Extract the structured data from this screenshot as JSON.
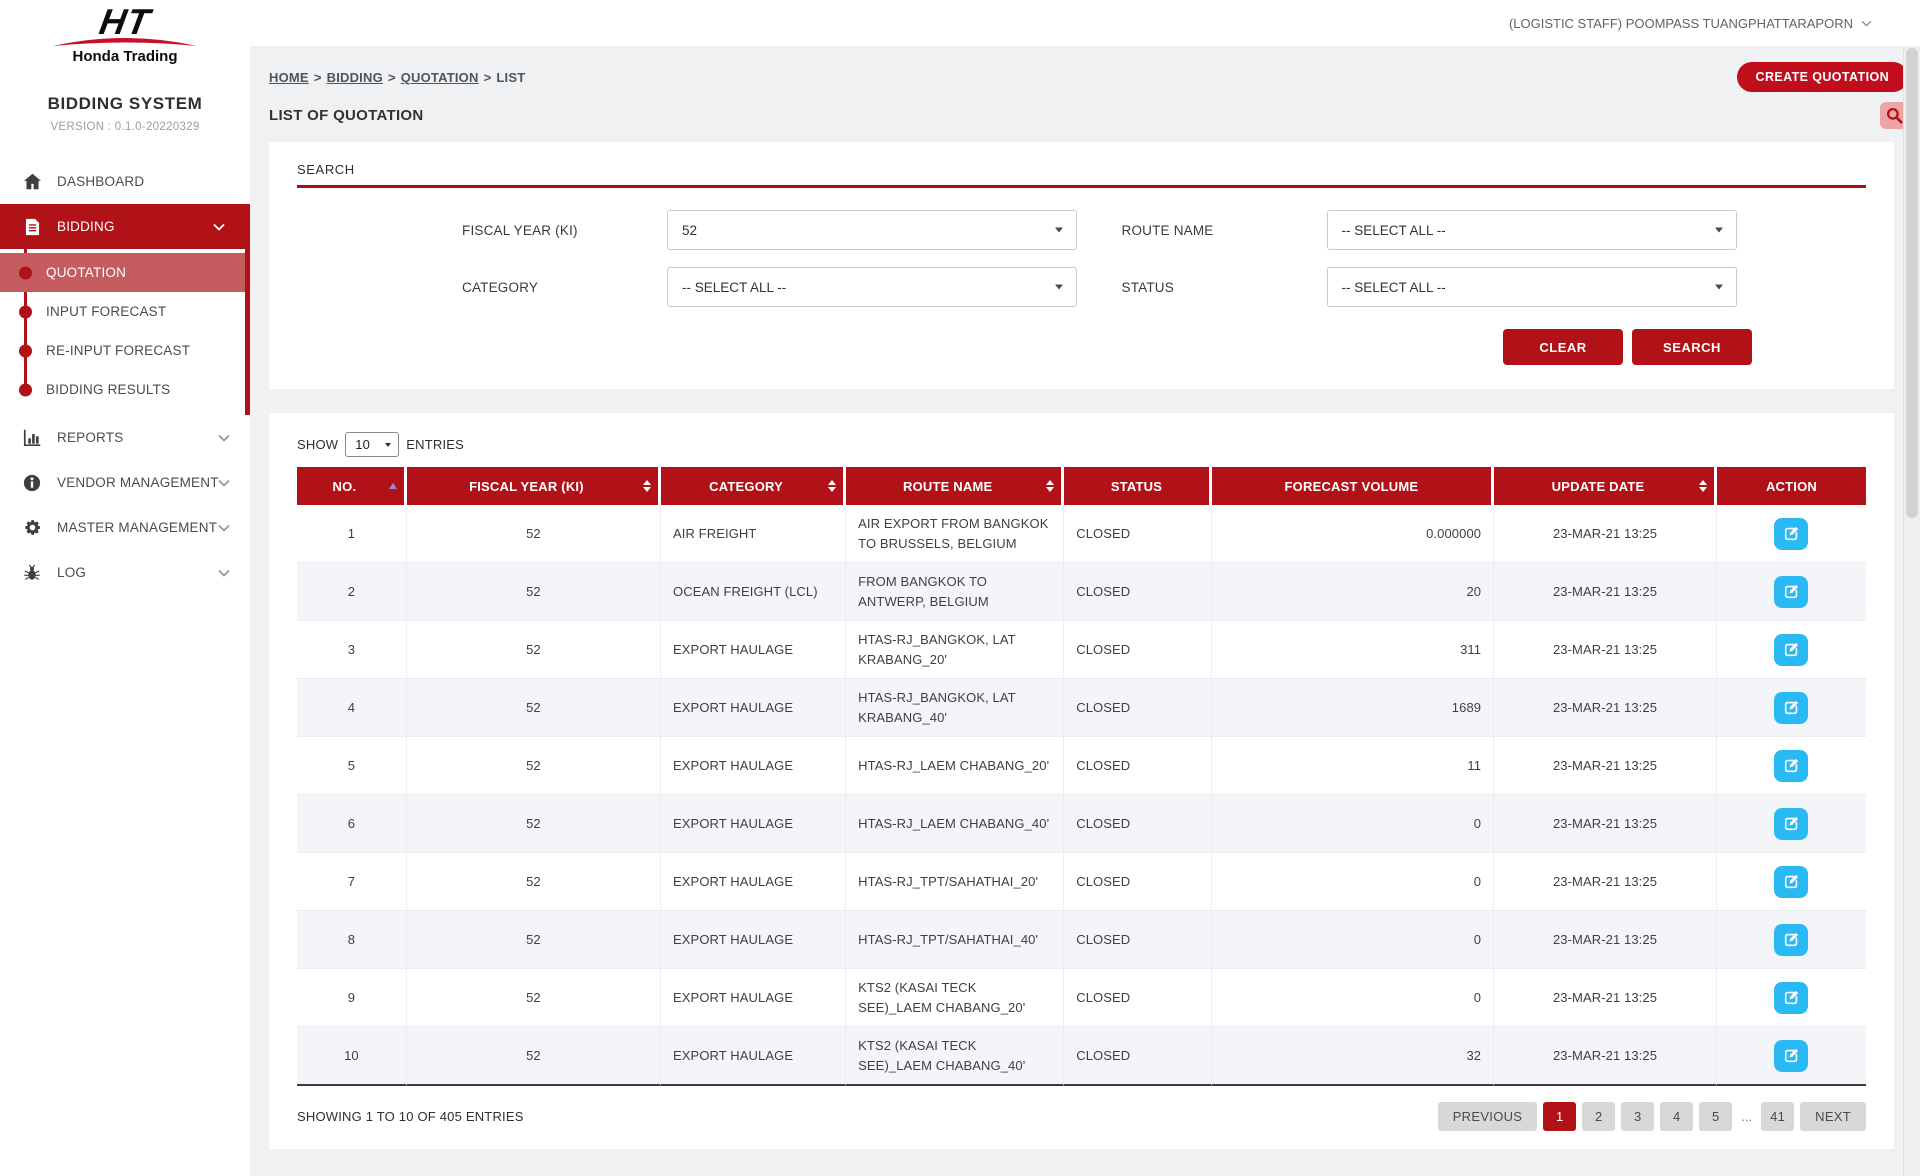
{
  "header": {
    "user_label": "(LOGISTIC STAFF) POOMPASS TUANGPHATTARAPORN"
  },
  "sidebar": {
    "logo_monogram": "HT",
    "logo_company": "Honda Trading",
    "app_title": "BIDDING SYSTEM",
    "version": "VERSION : 0.1.0-20220329",
    "items": [
      {
        "label": "DASHBOARD",
        "icon": "home"
      },
      {
        "label": "BIDDING",
        "icon": "document",
        "expanded": true,
        "children": [
          {
            "label": "QUOTATION",
            "active": true
          },
          {
            "label": "INPUT FORECAST"
          },
          {
            "label": "RE-INPUT FORECAST"
          },
          {
            "label": "BIDDING RESULTS"
          }
        ]
      },
      {
        "label": "REPORTS",
        "icon": "bar-chart"
      },
      {
        "label": "VENDOR MANAGEMENT",
        "icon": "info"
      },
      {
        "label": "MASTER MANAGEMENT",
        "icon": "gear"
      },
      {
        "label": "LOG",
        "icon": "bug"
      }
    ]
  },
  "breadcrumb": {
    "items": [
      "HOME",
      "BIDDING",
      "QUOTATION"
    ],
    "current": "LIST",
    "separator": ">"
  },
  "page": {
    "title": "LIST OF QUOTATION",
    "create_button": "CREATE QUOTATION"
  },
  "search_panel": {
    "title": "SEARCH",
    "fields": [
      {
        "label": "FISCAL YEAR (KI)",
        "value": "52"
      },
      {
        "label": "ROUTE NAME",
        "value": "-- SELECT ALL --"
      },
      {
        "label": "CATEGORY",
        "value": "-- SELECT ALL --"
      },
      {
        "label": "STATUS",
        "value": "-- SELECT ALL --"
      }
    ],
    "clear_button": "CLEAR",
    "search_button": "SEARCH"
  },
  "table": {
    "show_label": "SHOW",
    "entries_label": "ENTRIES",
    "page_size": "10",
    "columns": [
      {
        "label": "NO.",
        "sort": "asc"
      },
      {
        "label": "FISCAL YEAR (KI)",
        "sort": "both"
      },
      {
        "label": "CATEGORY",
        "sort": "both"
      },
      {
        "label": "ROUTE NAME",
        "sort": "both"
      },
      {
        "label": "STATUS",
        "sort": "none"
      },
      {
        "label": "FORECAST VOLUME",
        "sort": "none"
      },
      {
        "label": "UPDATE DATE",
        "sort": "both"
      },
      {
        "label": "ACTION",
        "sort": "none"
      }
    ],
    "rows": [
      {
        "no": "1",
        "fiscal_year": "52",
        "category": "AIR FREIGHT",
        "route_name": "AIR EXPORT FROM BANGKOK TO BRUSSELS, BELGIUM",
        "status": "CLOSED",
        "forecast_volume": "0.000000",
        "update_date": "23-MAR-21 13:25"
      },
      {
        "no": "2",
        "fiscal_year": "52",
        "category": "OCEAN FREIGHT (LCL)",
        "route_name": "FROM BANGKOK TO ANTWERP, BELGIUM",
        "status": "CLOSED",
        "forecast_volume": "20",
        "update_date": "23-MAR-21 13:25"
      },
      {
        "no": "3",
        "fiscal_year": "52",
        "category": "EXPORT HAULAGE",
        "route_name": "HTAS-RJ_BANGKOK, LAT KRABANG_20'",
        "status": "CLOSED",
        "forecast_volume": "311",
        "update_date": "23-MAR-21 13:25"
      },
      {
        "no": "4",
        "fiscal_year": "52",
        "category": "EXPORT HAULAGE",
        "route_name": "HTAS-RJ_BANGKOK, LAT KRABANG_40'",
        "status": "CLOSED",
        "forecast_volume": "1689",
        "update_date": "23-MAR-21 13:25"
      },
      {
        "no": "5",
        "fiscal_year": "52",
        "category": "EXPORT HAULAGE",
        "route_name": "HTAS-RJ_LAEM CHABANG_20'",
        "status": "CLOSED",
        "forecast_volume": "11",
        "update_date": "23-MAR-21 13:25"
      },
      {
        "no": "6",
        "fiscal_year": "52",
        "category": "EXPORT HAULAGE",
        "route_name": "HTAS-RJ_LAEM CHABANG_40'",
        "status": "CLOSED",
        "forecast_volume": "0",
        "update_date": "23-MAR-21 13:25"
      },
      {
        "no": "7",
        "fiscal_year": "52",
        "category": "EXPORT HAULAGE",
        "route_name": "HTAS-RJ_TPT/SAHATHAI_20'",
        "status": "CLOSED",
        "forecast_volume": "0",
        "update_date": "23-MAR-21 13:25"
      },
      {
        "no": "8",
        "fiscal_year": "52",
        "category": "EXPORT HAULAGE",
        "route_name": "HTAS-RJ_TPT/SAHATHAI_40'",
        "status": "CLOSED",
        "forecast_volume": "0",
        "update_date": "23-MAR-21 13:25"
      },
      {
        "no": "9",
        "fiscal_year": "52",
        "category": "EXPORT HAULAGE",
        "route_name": "KTS2 (KASAI TECK SEE)_LAEM CHABANG_20'",
        "status": "CLOSED",
        "forecast_volume": "0",
        "update_date": "23-MAR-21 13:25"
      },
      {
        "no": "10",
        "fiscal_year": "52",
        "category": "EXPORT HAULAGE",
        "route_name": "KTS2 (KASAI TECK SEE)_LAEM CHABANG_40'",
        "status": "CLOSED",
        "forecast_volume": "32",
        "update_date": "23-MAR-21 13:25"
      }
    ]
  },
  "pagination": {
    "summary": "SHOWING 1 TO 10 OF 405 ENTRIES",
    "previous": "PREVIOUS",
    "pages": [
      "1",
      "2",
      "3",
      "4",
      "5"
    ],
    "active_page": "1",
    "ellipsis": "...",
    "last_page": "41",
    "next": "NEXT"
  }
}
